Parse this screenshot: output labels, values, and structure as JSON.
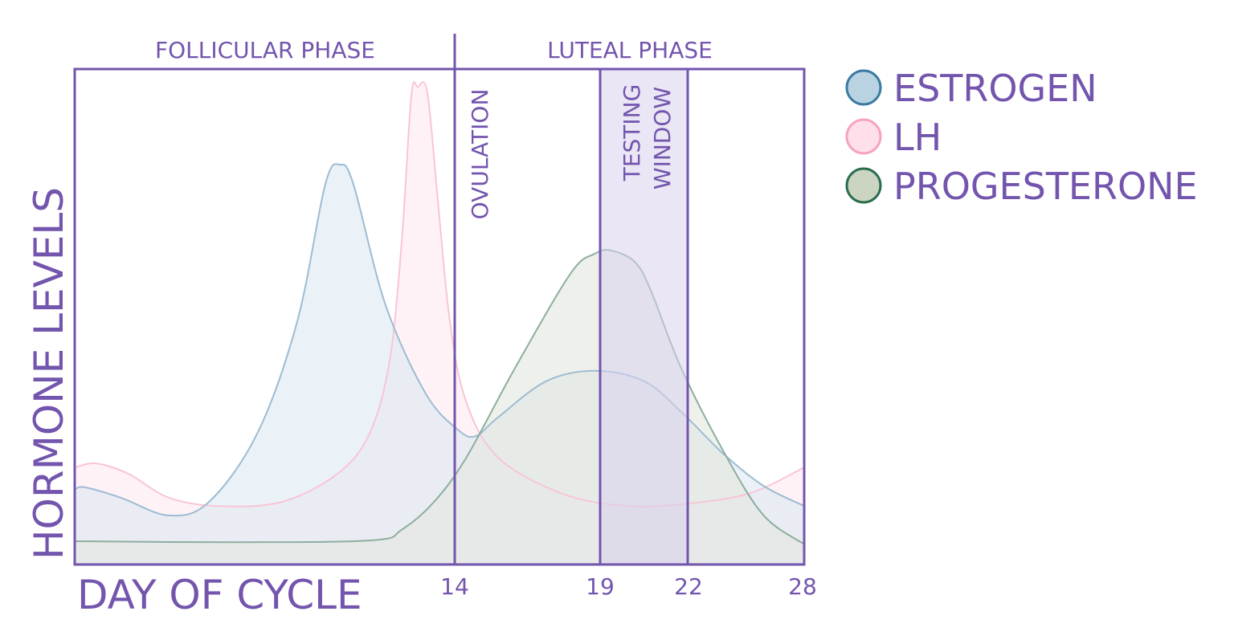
{
  "chart_data": {
    "type": "area",
    "title": "",
    "xlabel": "DAY OF CYCLE",
    "ylabel": "HORMONE LEVELS",
    "x_ticks": [
      14,
      19,
      22,
      28
    ],
    "xlim": [
      0,
      28
    ],
    "ylim": [
      0,
      100
    ],
    "grid": false,
    "legend_position": "right",
    "phases": [
      {
        "label": "FOLLICULAR PHASE",
        "from": 0,
        "to": 14
      },
      {
        "label": "LUTEAL PHASE",
        "from": 14,
        "to": 28
      }
    ],
    "annotations": {
      "ovulation": {
        "label": "OVULATION",
        "day": 14
      },
      "testing_window": {
        "label_line1": "TESTING",
        "label_line2": "WINDOW",
        "from": 19,
        "to": 22
      }
    },
    "series": [
      {
        "name": "ESTROGEN",
        "fill": "#dce8f2",
        "stroke": "#9dbcd2",
        "legend_fill": "#bad3e2",
        "legend_stroke": "#3a7ba2",
        "x": [
          0,
          0.36,
          1.69,
          3.46,
          4.94,
          6.72,
          8.2,
          9.23,
          9.77,
          10.27,
          11.45,
          12.93,
          14.11,
          14.72,
          15.49,
          17.15,
          18.81,
          20.51,
          21.83,
          23.82,
          25.89,
          28
        ],
        "y": [
          15.1,
          15.6,
          13.5,
          9.9,
          12.6,
          26.4,
          49.1,
          76.7,
          80.7,
          76.7,
          52.4,
          34.5,
          27.2,
          25.9,
          29.7,
          37.0,
          39.1,
          37.0,
          30.5,
          22.4,
          15.9,
          11.8
        ]
      },
      {
        "name": "LH",
        "fill": "#ffe9f1",
        "stroke": "#f8c5d7",
        "legend_fill": "#ffe0ea",
        "legend_stroke": "#f6a3c1",
        "x": [
          0,
          0.8,
          1.98,
          3.46,
          5.24,
          7.61,
          9.68,
          10.86,
          11.6,
          12.05,
          12.4,
          12.64,
          12.99,
          13.38,
          13.82,
          14.39,
          15.49,
          17.7,
          19.91,
          21.83,
          25.14,
          28
        ],
        "y": [
          19.6,
          20.4,
          18.3,
          13.5,
          11.8,
          12.6,
          18.3,
          26.4,
          41.0,
          65.3,
          94.5,
          96.4,
          95.3,
          73.4,
          49.1,
          32.9,
          21.6,
          14.3,
          11.8,
          12.2,
          14.3,
          19.6
        ]
      },
      {
        "name": "PROGESTERONE",
        "fill": "#e3e8dd",
        "stroke": "#8cae9e",
        "legend_fill": "#ccd4c2",
        "legend_stroke": "#2a6e50",
        "x": [
          0,
          6.13,
          11.0,
          12.04,
          13.23,
          14.39,
          16.04,
          17.98,
          18.81,
          19.36,
          20.18,
          20.73,
          21.75,
          23.82,
          25.89,
          28
        ],
        "y": [
          4.7,
          4.5,
          4.9,
          7.0,
          12.6,
          21.5,
          39.3,
          58.7,
          62.7,
          63.4,
          61.1,
          55.4,
          40.0,
          23.0,
          10.0,
          4.1
        ]
      }
    ],
    "colors": {
      "text": "#7355ad",
      "frame": "#7355ad",
      "window_fill": "#e6e1f1"
    }
  }
}
